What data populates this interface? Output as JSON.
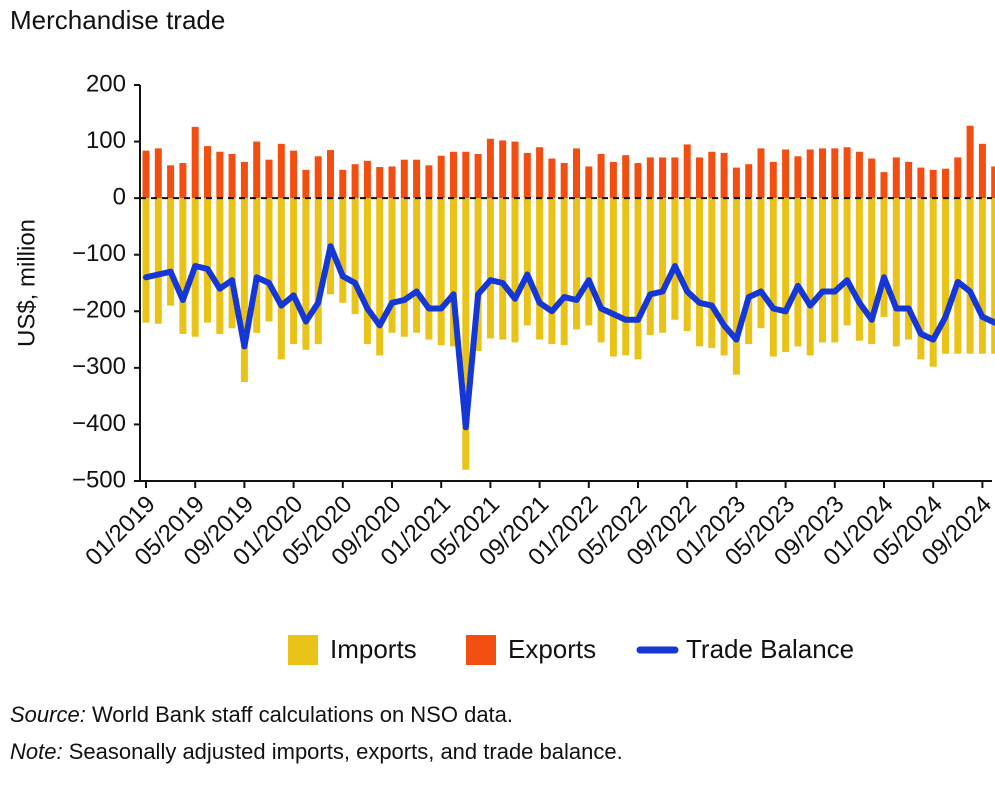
{
  "chart_data": {
    "type": "bar",
    "title": "Merchandise trade",
    "y_label": "US$, million",
    "categories": [
      "01/2019",
      null,
      null,
      null,
      "05/2019",
      null,
      null,
      null,
      "09/2019",
      null,
      null,
      null,
      "01/2020",
      null,
      null,
      null,
      "05/2020",
      null,
      null,
      null,
      "09/2020",
      null,
      null,
      null,
      "01/2021",
      null,
      null,
      null,
      "05/2021",
      null,
      null,
      null,
      "09/2021",
      null,
      null,
      null,
      "01/2022",
      null,
      null,
      null,
      "05/2022",
      null,
      null,
      null,
      "09/2022",
      null,
      null,
      null,
      "01/2023",
      null,
      null,
      null,
      "05/2023",
      null,
      null,
      null,
      "09/2023",
      null,
      null,
      null,
      "01/2024",
      null,
      null,
      null,
      "05/2024",
      null,
      null,
      null,
      "09/2024",
      null
    ],
    "series": [
      {
        "name": "Imports",
        "type": "bar",
        "color": "#e9c318",
        "values": [
          -220,
          -222,
          -190,
          -240,
          -245,
          -220,
          -240,
          -230,
          -325,
          -238,
          -218,
          -285,
          -258,
          -268,
          -258,
          -170,
          -185,
          -205,
          -258,
          -278,
          -238,
          -245,
          -238,
          -250,
          -260,
          -262,
          -480,
          -270,
          -248,
          -250,
          -255,
          -225,
          -250,
          -258,
          -260,
          -232,
          -225,
          -255,
          -280,
          -278,
          -285,
          -242,
          -238,
          -215,
          -235,
          -262,
          -265,
          -278,
          -312,
          -258,
          -230,
          -280,
          -272,
          -262,
          -278,
          -255,
          -255,
          -225,
          -252,
          -258,
          -210,
          -262,
          -250,
          -285,
          -298,
          -275,
          -275,
          -275,
          -275,
          -275
        ]
      },
      {
        "name": "Exports",
        "type": "bar",
        "color": "#f24e12",
        "values": [
          84,
          88,
          58,
          62,
          126,
          92,
          82,
          78,
          64,
          100,
          68,
          96,
          84,
          50,
          74,
          85,
          50,
          60,
          66,
          55,
          56,
          68,
          68,
          58,
          75,
          82,
          82,
          78,
          105,
          102,
          100,
          80,
          90,
          70,
          62,
          88,
          56,
          78,
          64,
          76,
          62,
          72,
          72,
          72,
          95,
          72,
          82,
          80,
          54,
          60,
          88,
          64,
          86,
          74,
          86,
          88,
          88,
          90,
          82,
          70,
          46,
          72,
          64,
          54,
          50,
          52,
          72,
          128,
          96,
          56
        ]
      },
      {
        "name": "Trade Balance",
        "type": "line",
        "color": "#1537d6",
        "values": [
          -140,
          -135,
          -130,
          -180,
          -120,
          -125,
          -160,
          -145,
          -262,
          -140,
          -150,
          -190,
          -172,
          -218,
          -185,
          -85,
          -138,
          -150,
          -195,
          -225,
          -185,
          -180,
          -165,
          -195,
          -195,
          -170,
          -405,
          -170,
          -145,
          -150,
          -178,
          -135,
          -185,
          -200,
          -175,
          -180,
          -145,
          -195,
          -205,
          -215,
          -215,
          -170,
          -165,
          -120,
          -165,
          -185,
          -190,
          -225,
          -250,
          -175,
          -165,
          -195,
          -200,
          -155,
          -190,
          -165,
          -165,
          -145,
          -185,
          -215,
          -140,
          -195,
          -195,
          -240,
          -250,
          -210,
          -148,
          -165,
          -210,
          -220
        ]
      }
    ],
    "ylim": [
      -500,
      200
    ],
    "yticks": [
      200,
      100,
      0,
      {
        "value": -100,
        "label": "−100"
      },
      {
        "value": -200,
        "label": "−200"
      },
      {
        "value": -300,
        "label": "−300"
      },
      {
        "value": -400,
        "label": "−400"
      },
      {
        "value": -500,
        "label": "−500"
      }
    ],
    "grid": false,
    "zero_line": true
  },
  "footnotes": [
    {
      "label": "Source:",
      "text": " World Bank staff calculations on NSO data."
    },
    {
      "label": "Note:",
      "text": " Seasonally adjusted imports, exports, and trade balance."
    }
  ]
}
